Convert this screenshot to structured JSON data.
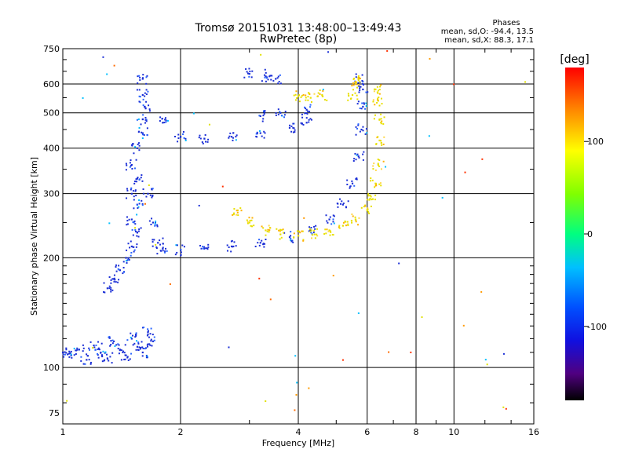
{
  "chart_data": {
    "type": "scatter",
    "title": "Tromsø 20151031 13:48:00–13:49:43",
    "subtitle": "RwPretec (8p)",
    "phase_block": {
      "heading": "Phases",
      "line_o": "mean, sd,O: -94.4, 13.5",
      "line_x": "mean, sd,X:  88.3, 17.1"
    },
    "xlabel": "Frequency [MHz]",
    "ylabel": "Stationary phase Virtual Height [km]",
    "xscale": "log",
    "yscale": "log",
    "xlim": [
      1,
      16
    ],
    "ylim": [
      70,
      750
    ],
    "x_ticks": [
      1,
      2,
      4,
      6,
      8,
      10,
      16
    ],
    "y_ticks": [
      75,
      100,
      200,
      300,
      400,
      500,
      600,
      750
    ],
    "grid": true,
    "colorbar": {
      "label": "[deg]",
      "range": [
        -180,
        180
      ],
      "ticks": [
        -100,
        0,
        100
      ]
    },
    "colors": {
      "o_mode": "#1b2fd6",
      "x_mode": "#e8e000"
    },
    "series": [
      {
        "mode": "O",
        "phase_deg": -100,
        "points": [
          [
            1.0,
            110
          ],
          [
            1.05,
            108
          ],
          [
            1.1,
            112
          ],
          [
            1.15,
            105
          ],
          [
            1.2,
            115
          ],
          [
            1.25,
            110
          ],
          [
            1.3,
            106
          ],
          [
            1.35,
            118
          ],
          [
            1.4,
            112
          ],
          [
            1.45,
            108
          ],
          [
            1.5,
            120
          ],
          [
            1.55,
            114
          ],
          [
            1.6,
            110
          ],
          [
            1.65,
            125
          ],
          [
            1.7,
            118
          ],
          [
            1.3,
            165
          ],
          [
            1.35,
            175
          ],
          [
            1.4,
            185
          ],
          [
            1.45,
            200
          ],
          [
            1.5,
            215
          ],
          [
            1.55,
            235
          ],
          [
            1.5,
            255
          ],
          [
            1.55,
            280
          ],
          [
            1.5,
            300
          ],
          [
            1.55,
            330
          ],
          [
            1.5,
            360
          ],
          [
            1.55,
            400
          ],
          [
            1.6,
            440
          ],
          [
            1.6,
            480
          ],
          [
            1.62,
            520
          ],
          [
            1.6,
            560
          ],
          [
            1.6,
            620
          ],
          [
            1.65,
            300
          ],
          [
            1.7,
            250
          ],
          [
            1.75,
            220
          ],
          [
            1.8,
            212
          ],
          [
            2.0,
            210
          ],
          [
            2.3,
            212
          ],
          [
            2.7,
            215
          ],
          [
            3.2,
            220
          ],
          [
            3.8,
            228
          ],
          [
            4.3,
            238
          ],
          [
            4.8,
            255
          ],
          [
            5.2,
            280
          ],
          [
            5.5,
            320
          ],
          [
            5.7,
            380
          ],
          [
            5.8,
            450
          ],
          [
            5.85,
            520
          ],
          [
            5.85,
            580
          ],
          [
            5.7,
            620
          ],
          [
            1.8,
            470
          ],
          [
            2.0,
            430
          ],
          [
            2.3,
            425
          ],
          [
            2.7,
            430
          ],
          [
            3.2,
            440
          ],
          [
            3.8,
            455
          ],
          [
            4.2,
            470
          ],
          [
            3.2,
            490
          ],
          [
            3.6,
            500
          ],
          [
            4.2,
            510
          ],
          [
            3.0,
            640
          ],
          [
            3.3,
            630
          ],
          [
            3.5,
            620
          ]
        ]
      },
      {
        "mode": "X",
        "phase_deg": 100,
        "points": [
          [
            2.8,
            270
          ],
          [
            3.0,
            250
          ],
          [
            3.3,
            238
          ],
          [
            3.6,
            232
          ],
          [
            4.0,
            230
          ],
          [
            4.4,
            232
          ],
          [
            4.8,
            238
          ],
          [
            5.2,
            245
          ],
          [
            5.6,
            255
          ],
          [
            6.0,
            270
          ],
          [
            6.2,
            290
          ],
          [
            6.3,
            320
          ],
          [
            6.4,
            360
          ],
          [
            6.45,
            420
          ],
          [
            6.45,
            480
          ],
          [
            6.4,
            540
          ],
          [
            6.3,
            580
          ],
          [
            5.5,
            560
          ],
          [
            5.6,
            600
          ],
          [
            5.7,
            620
          ],
          [
            4.0,
            555
          ],
          [
            4.3,
            550
          ],
          [
            4.6,
            560
          ]
        ]
      }
    ]
  }
}
